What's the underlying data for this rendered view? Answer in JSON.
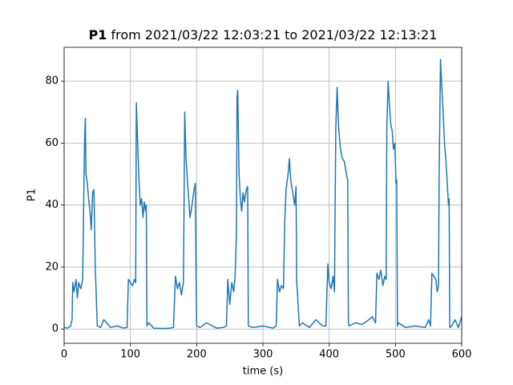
{
  "chart_data": {
    "type": "line",
    "title_bold": "P1",
    "title": "from 2021/03/22 12:03:21 to 2021/03/22 12:13:21",
    "xlabel": "time (s)",
    "ylabel": "P1",
    "xlim": [
      0,
      600
    ],
    "xticks": [
      0,
      100,
      200,
      300,
      400,
      500,
      600
    ],
    "ylim": [
      -4.6,
      90.9
    ],
    "yticks": [
      0,
      20,
      40,
      60,
      80
    ],
    "grid": true,
    "series": [
      {
        "color": "#1f77b4",
        "x": [
          0,
          5,
          10,
          12,
          13,
          15,
          18,
          20,
          22,
          25,
          28,
          30,
          31,
          32,
          33,
          35,
          37,
          39,
          41,
          43,
          45,
          47,
          48,
          50,
          55,
          60,
          70,
          80,
          90,
          95,
          97,
          100,
          103,
          106,
          108,
          109,
          111,
          113,
          115,
          117,
          119,
          121,
          123,
          124,
          125,
          128,
          135,
          150,
          160,
          165,
          168,
          171,
          174,
          177,
          180,
          181,
          182,
          184,
          186,
          188,
          190,
          193,
          196,
          198,
          199,
          200,
          205,
          215,
          230,
          240,
          245,
          247,
          250,
          253,
          256,
          258,
          260,
          261,
          262,
          264,
          266,
          268,
          270,
          272,
          275,
          277,
          278,
          285,
          300,
          315,
          320,
          322,
          325,
          328,
          331,
          333,
          335,
          338,
          340,
          342,
          345,
          348,
          350,
          351,
          352,
          355,
          360,
          370,
          380,
          390,
          395,
          398,
          400,
          403,
          406,
          408,
          409,
          410,
          412,
          414,
          417,
          420,
          423,
          426,
          428,
          429,
          430,
          440,
          450,
          460,
          465,
          470,
          472,
          475,
          478,
          481,
          484,
          486,
          487,
          489,
          491,
          493,
          495,
          497,
          499,
          501,
          502,
          503,
          505,
          515,
          530,
          545,
          550,
          553,
          555,
          558,
          561,
          563,
          565,
          566,
          568,
          570,
          572,
          574,
          576,
          578,
          580,
          581,
          582,
          585,
          590,
          595,
          600
        ],
        "values": [
          0.5,
          0.3,
          1,
          3,
          15,
          12,
          16,
          10,
          15,
          13,
          16,
          48,
          62,
          68,
          50,
          47,
          42,
          38,
          32,
          44,
          45,
          20,
          14,
          1,
          0.5,
          3,
          0.5,
          1,
          0.3,
          0.5,
          16,
          15,
          14,
          16,
          15,
          73,
          60,
          48,
          40,
          42,
          36,
          41,
          38,
          40,
          1,
          2,
          0.3,
          0.2,
          0.3,
          0.5,
          17,
          13,
          15,
          11,
          15,
          40,
          70,
          55,
          48,
          42,
          36,
          40,
          45,
          47,
          20,
          1,
          0.5,
          2,
          0.3,
          0.5,
          1,
          16,
          8,
          15,
          12,
          17,
          30,
          75,
          77,
          50,
          42,
          38,
          44,
          41,
          45,
          46,
          1,
          0.5,
          1,
          0.3,
          1,
          16,
          12,
          14,
          13,
          35,
          45,
          50,
          55,
          48,
          44,
          40,
          46,
          15,
          12,
          1,
          2,
          0.5,
          3,
          1,
          1,
          21,
          15,
          13,
          17,
          12,
          40,
          65,
          78,
          66,
          58,
          55,
          54,
          50,
          48,
          2,
          1,
          2,
          1.5,
          3,
          4,
          2,
          18,
          16,
          19,
          14,
          17,
          16,
          65,
          80,
          72,
          66,
          64,
          58,
          60,
          47,
          48,
          1,
          2,
          0.5,
          1,
          0.5,
          3,
          1,
          18,
          17,
          16,
          12,
          14,
          50,
          87,
          78,
          70,
          60,
          55,
          48,
          40,
          42,
          0.5,
          1,
          3,
          0.5,
          4
        ]
      }
    ]
  }
}
